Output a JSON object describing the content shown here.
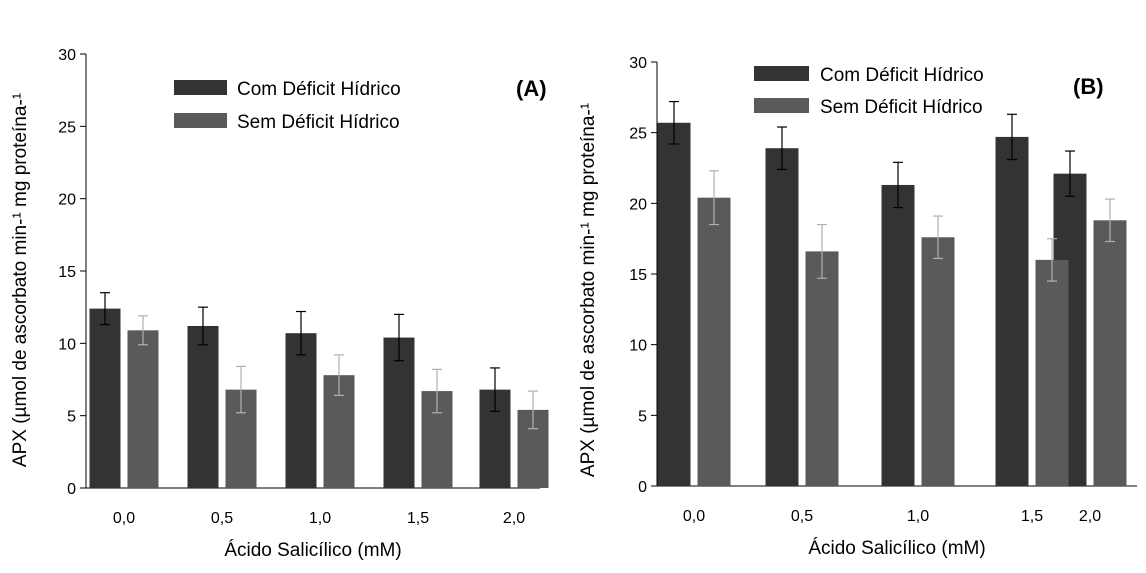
{
  "chart_data": [
    {
      "type": "bar",
      "panel_label": "(A)",
      "xlabel": "Ácido Salicílico (mM)",
      "ylabel": "APX (µmol de ascorbato min-¹ mg proteína-¹",
      "ylim": [
        0,
        30
      ],
      "yticks": [
        "0",
        "5",
        "10",
        "15",
        "20",
        "25",
        "30"
      ],
      "categories": [
        "0,0",
        "0,5",
        "1,0",
        "1,5",
        "2,0"
      ],
      "legend_position": "top-center",
      "grid": false,
      "series": [
        {
          "name": "Com Déficit Hídrico",
          "color": "#333333",
          "values": [
            12.4,
            11.2,
            10.7,
            10.4,
            6.8
          ],
          "errors": [
            1.1,
            1.3,
            1.5,
            1.6,
            1.5
          ]
        },
        {
          "name": "Sem Déficit Hídrico",
          "color": "#5a5a5a",
          "values": [
            10.9,
            6.8,
            7.8,
            6.7,
            5.4
          ],
          "errors": [
            1.0,
            1.6,
            1.4,
            1.5,
            1.3
          ]
        }
      ]
    },
    {
      "type": "bar",
      "panel_label": "(B)",
      "xlabel": "Ácido Salicílico (mM)",
      "ylabel": "APX (µmol de ascorbato min-¹ mg proteína-¹",
      "ylim": [
        0,
        30
      ],
      "yticks": [
        "0",
        "5",
        "10",
        "15",
        "20",
        "25",
        "30"
      ],
      "categories": [
        "0,0",
        "0,5",
        "1,0",
        "1,5",
        "2,0"
      ],
      "legend_position": "top-left",
      "grid": false,
      "series": [
        {
          "name": "Com Déficit Hídrico",
          "color": "#333333",
          "values": [
            25.7,
            23.9,
            21.3,
            24.7,
            22.1
          ],
          "errors": [
            1.5,
            1.5,
            1.6,
            1.6,
            1.6
          ]
        },
        {
          "name": "Sem Déficit Hídrico",
          "color": "#5a5a5a",
          "values": [
            20.4,
            16.6,
            17.6,
            16.0,
            18.8
          ],
          "errors": [
            1.9,
            1.9,
            1.5,
            1.5,
            1.5
          ]
        }
      ]
    }
  ]
}
